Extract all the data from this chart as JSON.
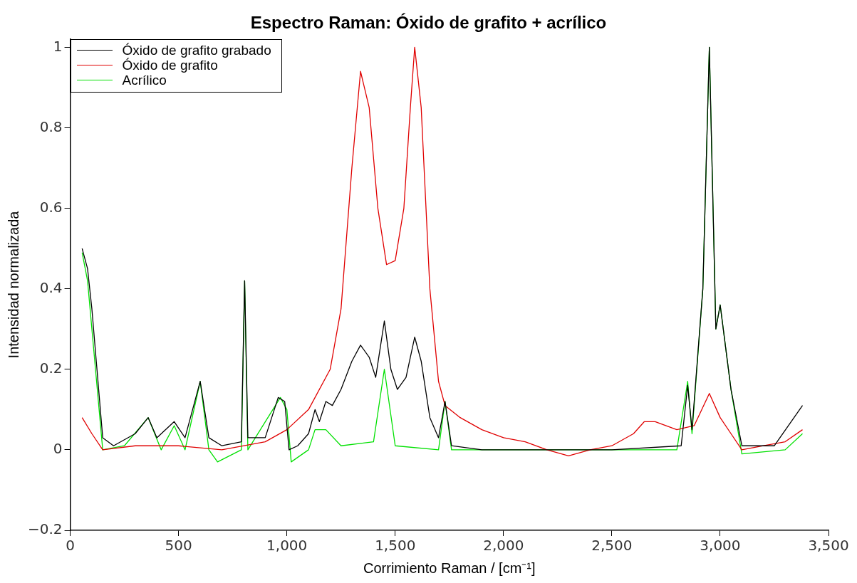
{
  "chart_data": {
    "type": "line",
    "title": "Espectro Raman: Óxido de grafito + acrílico",
    "xlabel": "Corrimiento Raman / [cm⁻¹]",
    "ylabel": "Intensidad normalizada",
    "xlim": [
      0,
      3500
    ],
    "ylim": [
      -0.2,
      1.02
    ],
    "xticks": [
      0,
      {
        "value": 500,
        "label": "500"
      },
      {
        "value": 1000,
        "label": "1,000"
      },
      {
        "value": 1500,
        "label": "1,500"
      },
      {
        "value": 2000,
        "label": "2,000"
      },
      {
        "value": 2500,
        "label": "2,500"
      },
      {
        "value": 3000,
        "label": "3,000"
      },
      {
        "value": 3500,
        "label": "3,500"
      }
    ],
    "yticks": [
      {
        "value": -0.2,
        "label": "−0.2"
      },
      0,
      0.2,
      0.4,
      0.6,
      0.8,
      1
    ],
    "grid": false,
    "legend": "top left",
    "marker": "none",
    "line_style": "solid",
    "series": [
      {
        "name": "Óxido de grafito grabado",
        "color": "#000000",
        "x": [
          55,
          80,
          100,
          150,
          200,
          300,
          360,
          400,
          480,
          530,
          600,
          640,
          700,
          790,
          805,
          820,
          900,
          960,
          990,
          1010,
          1050,
          1100,
          1130,
          1150,
          1180,
          1210,
          1250,
          1300,
          1340,
          1380,
          1410,
          1450,
          1480,
          1510,
          1550,
          1590,
          1620,
          1660,
          1700,
          1730,
          1760,
          1900,
          2500,
          2820,
          2850,
          2870,
          2920,
          2950,
          2980,
          3000,
          3050,
          3100,
          3250,
          3380
        ],
        "values": [
          0.5,
          0.45,
          0.35,
          0.03,
          0.01,
          0.04,
          0.08,
          0.03,
          0.07,
          0.03,
          0.17,
          0.03,
          0.01,
          0.02,
          0.42,
          0.03,
          0.03,
          0.13,
          0.12,
          0.0,
          0.01,
          0.04,
          0.1,
          0.07,
          0.12,
          0.11,
          0.15,
          0.22,
          0.26,
          0.23,
          0.18,
          0.32,
          0.2,
          0.15,
          0.18,
          0.28,
          0.22,
          0.08,
          0.03,
          0.12,
          0.01,
          0.0,
          0.0,
          0.01,
          0.16,
          0.05,
          0.4,
          1.0,
          0.3,
          0.36,
          0.15,
          0.01,
          0.01,
          0.11
        ]
      },
      {
        "name": "Óxido de grafito",
        "color": "#e00000",
        "x": [
          55,
          100,
          150,
          300,
          500,
          700,
          900,
          1000,
          1100,
          1200,
          1250,
          1300,
          1340,
          1380,
          1420,
          1460,
          1500,
          1540,
          1570,
          1590,
          1620,
          1660,
          1700,
          1730,
          1800,
          1900,
          2000,
          2100,
          2200,
          2300,
          2400,
          2500,
          2600,
          2650,
          2700,
          2800,
          2880,
          2950,
          3000,
          3050,
          3100,
          3200,
          3300,
          3380
        ],
        "values": [
          0.08,
          0.04,
          0.0,
          0.01,
          0.01,
          0.0,
          0.02,
          0.05,
          0.1,
          0.2,
          0.35,
          0.7,
          0.94,
          0.85,
          0.6,
          0.46,
          0.47,
          0.6,
          0.85,
          1.0,
          0.85,
          0.4,
          0.17,
          0.11,
          0.08,
          0.05,
          0.03,
          0.02,
          0.0,
          -0.015,
          0.0,
          0.01,
          0.04,
          0.07,
          0.07,
          0.05,
          0.06,
          0.14,
          0.08,
          0.04,
          0.0,
          0.01,
          0.02,
          0.05
        ]
      },
      {
        "name": "Acrílico",
        "color": "#00e000",
        "x": [
          55,
          80,
          150,
          250,
          360,
          420,
          480,
          530,
          600,
          640,
          680,
          790,
          805,
          820,
          970,
          1000,
          1020,
          1100,
          1130,
          1180,
          1250,
          1400,
          1450,
          1500,
          1700,
          1730,
          1760,
          2800,
          2850,
          2870,
          2920,
          2950,
          2980,
          3000,
          3050,
          3100,
          3300,
          3380
        ],
        "values": [
          0.49,
          0.42,
          0.0,
          0.01,
          0.08,
          0.0,
          0.06,
          0.0,
          0.17,
          0.0,
          -0.03,
          0.0,
          0.42,
          0.0,
          0.13,
          0.1,
          -0.03,
          0.0,
          0.05,
          0.05,
          0.01,
          0.02,
          0.2,
          0.01,
          0.0,
          0.12,
          0.0,
          0.0,
          0.17,
          0.04,
          0.4,
          1.0,
          0.3,
          0.36,
          0.15,
          -0.01,
          0.0,
          0.04
        ]
      }
    ]
  }
}
